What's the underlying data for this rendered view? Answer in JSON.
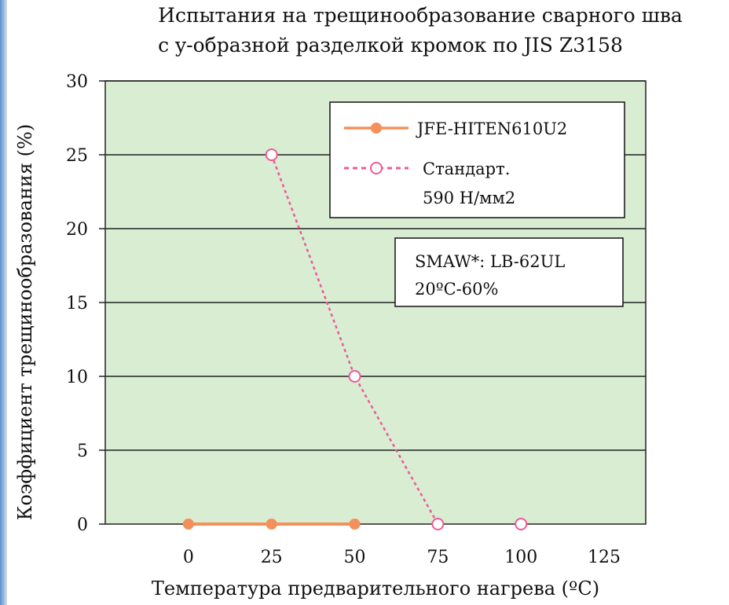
{
  "chart_data": {
    "type": "line",
    "title_lines": [
      "Испытания на трещинообразование сварного шва",
      "с y-образной разделкой кромок по JIS Z3158"
    ],
    "xlabel": "Температура предварительного нагрева (ºC)",
    "ylabel": "Коэффициент трещинообразования (%)",
    "x_ticks": [
      0,
      25,
      50,
      75,
      100,
      125
    ],
    "y_ticks": [
      0,
      5,
      10,
      15,
      20,
      25,
      30
    ],
    "xlim": [
      -25,
      137.5
    ],
    "ylim": [
      0,
      30
    ],
    "grid": "horizontal",
    "plot_background": "#d8edd2",
    "series": [
      {
        "name": "JFE-HITEN610U2",
        "x": [
          0,
          25,
          50
        ],
        "y": [
          0,
          0,
          0
        ],
        "color": "#f4905a",
        "line_style": "solid",
        "marker": "filled-circle"
      },
      {
        "name_lines": [
          "Стандарт.",
          "590 Н/мм2"
        ],
        "x": [
          25,
          50,
          75,
          100
        ],
        "y": [
          25,
          10,
          0,
          0
        ],
        "line_x": [
          25,
          50,
          75
        ],
        "line_y": [
          25,
          10,
          0
        ],
        "color": "#ee5a96",
        "line_style": "dotted",
        "marker": "open-circle"
      }
    ],
    "legend": {
      "position": "top-right"
    },
    "annotation_lines": [
      "SMAW*: LB-62UL",
      "20ºC-60%"
    ]
  }
}
